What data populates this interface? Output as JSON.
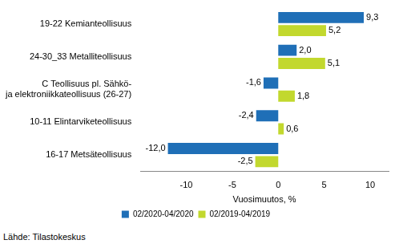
{
  "chart_data": {
    "type": "bar",
    "orientation": "horizontal",
    "categories": [
      "19-22 Kemianteollisuus",
      "24-30_33 Metalliteollisuus",
      [
        "C Teollisuus pl. Sähkö-",
        "ja elektroniikkateollisuus (26-27)"
      ],
      "10-11 Elintarviketeollisuus",
      "16-17 Metsäteollisuus"
    ],
    "series": [
      {
        "name": "02/2020-04/2020",
        "color": "#1f6fb7",
        "values": [
          9.3,
          2.0,
          -1.6,
          -2.4,
          -12.0
        ],
        "value_labels": [
          "9,3",
          "2,0",
          "-1,6",
          "-2,4",
          "-12,0"
        ]
      },
      {
        "name": "02/2019-04/2019",
        "color": "#c2d82e",
        "values": [
          5.2,
          5.1,
          1.8,
          0.6,
          -2.5
        ],
        "value_labels": [
          "5,2",
          "5,1",
          "1,8",
          "0,6",
          "-2,5"
        ]
      }
    ],
    "x_label": "Vuosimuutos, %",
    "xlim": [
      -15,
      12
    ],
    "xticks": [
      -10,
      -5,
      0,
      5,
      10
    ],
    "grid": false,
    "legend": "bottom",
    "data_labels": true,
    "source": "Lähde: Tilastokeskus"
  }
}
